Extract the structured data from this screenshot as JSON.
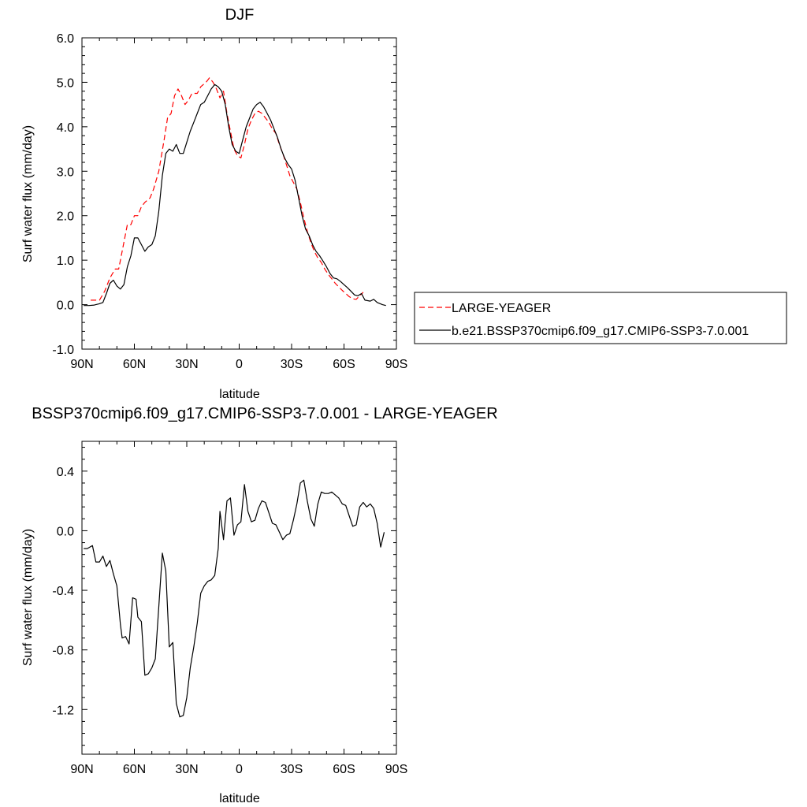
{
  "chart_data": [
    {
      "type": "line",
      "title": "DJF",
      "xlabel": "latitude",
      "ylabel": "Surf water flux (mm/day)",
      "xlim": [
        90,
        -90
      ],
      "ylim": [
        -1.0,
        6.0
      ],
      "x_ticks": [
        90,
        60,
        30,
        0,
        -30,
        -60,
        -90
      ],
      "x_tick_labels": [
        "90N",
        "60N",
        "30N",
        "0",
        "30S",
        "60S",
        "90S"
      ],
      "y_ticks": [
        -1.0,
        0.0,
        1.0,
        2.0,
        3.0,
        4.0,
        5.0,
        6.0
      ],
      "y_tick_labels": [
        "-1.0",
        "0.0",
        "1.0",
        "2.0",
        "3.0",
        "4.0",
        "5.0",
        "6.0"
      ],
      "grid": false,
      "legend_position": "right",
      "series": [
        {
          "name": "LARGE-YEAGER",
          "color": "#ff0000",
          "dash": "dashed",
          "points": [
            [
              85,
              0.1
            ],
            [
              80,
              0.1
            ],
            [
              77,
              0.3
            ],
            [
              74,
              0.6
            ],
            [
              71,
              0.8
            ],
            [
              69,
              0.8
            ],
            [
              67,
              1.2
            ],
            [
              64,
              1.8
            ],
            [
              62,
              1.8
            ],
            [
              60,
              2.0
            ],
            [
              58,
              2.0
            ],
            [
              56,
              2.2
            ],
            [
              54,
              2.3
            ],
            [
              51,
              2.4
            ],
            [
              49,
              2.6
            ],
            [
              46,
              3.0
            ],
            [
              43,
              3.7
            ],
            [
              41,
              4.2
            ],
            [
              39,
              4.3
            ],
            [
              37,
              4.7
            ],
            [
              35,
              4.85
            ],
            [
              33,
              4.7
            ],
            [
              31,
              4.5
            ],
            [
              29,
              4.6
            ],
            [
              27,
              4.75
            ],
            [
              24,
              4.75
            ],
            [
              22,
              4.9
            ],
            [
              19,
              5.0
            ],
            [
              17,
              5.1
            ],
            [
              15,
              5.0
            ],
            [
              13,
              4.85
            ],
            [
              11,
              4.65
            ],
            [
              9,
              4.8
            ],
            [
              7,
              4.3
            ],
            [
              5,
              3.9
            ],
            [
              3,
              3.5
            ],
            [
              1,
              3.35
            ],
            [
              -1,
              3.3
            ],
            [
              -3,
              3.6
            ],
            [
              -5,
              3.95
            ],
            [
              -7,
              4.15
            ],
            [
              -9,
              4.3
            ],
            [
              -11,
              4.35
            ],
            [
              -13,
              4.3
            ],
            [
              -15,
              4.2
            ],
            [
              -17,
              4.1
            ],
            [
              -19,
              3.95
            ],
            [
              -21,
              3.85
            ],
            [
              -23,
              3.6
            ],
            [
              -25,
              3.4
            ],
            [
              -27,
              3.15
            ],
            [
              -29,
              2.9
            ],
            [
              -31,
              2.75
            ],
            [
              -33,
              2.6
            ],
            [
              -35,
              2.3
            ],
            [
              -37,
              1.95
            ],
            [
              -39,
              1.65
            ],
            [
              -41,
              1.4
            ],
            [
              -43,
              1.2
            ],
            [
              -45,
              1.05
            ],
            [
              -47,
              0.95
            ],
            [
              -49,
              0.8
            ],
            [
              -51,
              0.68
            ],
            [
              -53,
              0.58
            ],
            [
              -55,
              0.48
            ],
            [
              -57,
              0.4
            ],
            [
              -59,
              0.32
            ],
            [
              -61,
              0.25
            ],
            [
              -63,
              0.18
            ],
            [
              -65,
              0.13
            ],
            [
              -67,
              0.12
            ],
            [
              -69,
              0.2
            ],
            [
              -71,
              0.28
            ]
          ]
        },
        {
          "name": "b.e21.BSSP370cmip6.f09_g17.CMIP6-SSP3-7.0.001",
          "color": "#000000",
          "dash": "solid",
          "points": [
            [
              89,
              -0.02
            ],
            [
              86,
              -0.02
            ],
            [
              83,
              -0.01
            ],
            [
              80,
              0.02
            ],
            [
              78,
              0.05
            ],
            [
              76,
              0.25
            ],
            [
              74,
              0.48
            ],
            [
              72,
              0.55
            ],
            [
              70,
              0.42
            ],
            [
              68,
              0.35
            ],
            [
              66,
              0.45
            ],
            [
              64,
              0.85
            ],
            [
              62,
              1.1
            ],
            [
              60,
              1.5
            ],
            [
              58,
              1.5
            ],
            [
              56,
              1.35
            ],
            [
              54,
              1.2
            ],
            [
              52,
              1.3
            ],
            [
              50,
              1.35
            ],
            [
              48,
              1.55
            ],
            [
              46,
              2.1
            ],
            [
              44,
              2.9
            ],
            [
              42,
              3.4
            ],
            [
              40,
              3.5
            ],
            [
              38,
              3.45
            ],
            [
              36,
              3.6
            ],
            [
              34,
              3.4
            ],
            [
              32,
              3.4
            ],
            [
              30,
              3.65
            ],
            [
              28,
              3.9
            ],
            [
              26,
              4.1
            ],
            [
              24,
              4.3
            ],
            [
              22,
              4.5
            ],
            [
              20,
              4.55
            ],
            [
              18,
              4.7
            ],
            [
              16,
              4.85
            ],
            [
              14,
              4.95
            ],
            [
              12,
              4.9
            ],
            [
              10,
              4.8
            ],
            [
              8,
              4.5
            ],
            [
              6,
              4.0
            ],
            [
              4,
              3.6
            ],
            [
              2,
              3.45
            ],
            [
              0,
              3.4
            ],
            [
              -2,
              3.7
            ],
            [
              -4,
              4.0
            ],
            [
              -6,
              4.2
            ],
            [
              -8,
              4.4
            ],
            [
              -10,
              4.5
            ],
            [
              -12,
              4.55
            ],
            [
              -14,
              4.45
            ],
            [
              -16,
              4.3
            ],
            [
              -18,
              4.15
            ],
            [
              -20,
              3.95
            ],
            [
              -22,
              3.75
            ],
            [
              -24,
              3.5
            ],
            [
              -26,
              3.3
            ],
            [
              -28,
              3.15
            ],
            [
              -30,
              3.05
            ],
            [
              -32,
              2.8
            ],
            [
              -34,
              2.4
            ],
            [
              -36,
              2.0
            ],
            [
              -38,
              1.7
            ],
            [
              -40,
              1.55
            ],
            [
              -42,
              1.35
            ],
            [
              -44,
              1.2
            ],
            [
              -46,
              1.1
            ],
            [
              -48,
              0.98
            ],
            [
              -50,
              0.85
            ],
            [
              -52,
              0.7
            ],
            [
              -54,
              0.6
            ],
            [
              -56,
              0.58
            ],
            [
              -58,
              0.52
            ],
            [
              -60,
              0.45
            ],
            [
              -62,
              0.38
            ],
            [
              -64,
              0.3
            ],
            [
              -66,
              0.22
            ],
            [
              -68,
              0.2
            ],
            [
              -70,
              0.25
            ],
            [
              -72,
              0.1
            ],
            [
              -75,
              0.08
            ],
            [
              -77,
              0.12
            ],
            [
              -79,
              0.05
            ],
            [
              -82,
              0.0
            ],
            [
              -84,
              -0.02
            ]
          ]
        }
      ]
    },
    {
      "type": "line",
      "title": "BSSP370cmip6.f09_g17.CMIP6-SSP3-7.0.001 - LARGE-YEAGER",
      "xlabel": "latitude",
      "ylabel": "Surf water flux (mm/day)",
      "xlim": [
        90,
        -90
      ],
      "ylim": [
        -1.5,
        0.6
      ],
      "x_ticks": [
        90,
        60,
        30,
        0,
        -30,
        -60,
        -90
      ],
      "x_tick_labels": [
        "90N",
        "60N",
        "30N",
        "0",
        "30S",
        "60S",
        "90S"
      ],
      "y_ticks": [
        -1.2,
        -0.8,
        -0.4,
        0.0,
        0.4
      ],
      "y_tick_labels": [
        "-1.2",
        "-0.8",
        "-0.4",
        "0.0",
        "0.4"
      ],
      "grid": false,
      "series": [
        {
          "color": "#000000",
          "dash": "solid",
          "points": [
            [
              89,
              -0.12
            ],
            [
              87,
              -0.12
            ],
            [
              84,
              -0.1
            ],
            [
              82,
              -0.21
            ],
            [
              80,
              -0.21
            ],
            [
              78,
              -0.17
            ],
            [
              76,
              -0.24
            ],
            [
              74,
              -0.2
            ],
            [
              72,
              -0.29
            ],
            [
              70,
              -0.37
            ],
            [
              68,
              -0.63
            ],
            [
              67,
              -0.72
            ],
            [
              65,
              -0.71
            ],
            [
              63,
              -0.76
            ],
            [
              61,
              -0.45
            ],
            [
              59,
              -0.46
            ],
            [
              58,
              -0.58
            ],
            [
              56,
              -0.61
            ],
            [
              54,
              -0.97
            ],
            [
              52,
              -0.96
            ],
            [
              50,
              -0.92
            ],
            [
              48,
              -0.86
            ],
            [
              46,
              -0.51
            ],
            [
              44,
              -0.15
            ],
            [
              42,
              -0.27
            ],
            [
              40,
              -0.78
            ],
            [
              38,
              -0.75
            ],
            [
              36,
              -1.16
            ],
            [
              34,
              -1.25
            ],
            [
              32,
              -1.24
            ],
            [
              30,
              -1.12
            ],
            [
              28,
              -0.92
            ],
            [
              26,
              -0.78
            ],
            [
              24,
              -0.62
            ],
            [
              22,
              -0.42
            ],
            [
              20,
              -0.37
            ],
            [
              18,
              -0.34
            ],
            [
              16,
              -0.33
            ],
            [
              14,
              -0.3
            ],
            [
              12,
              -0.12
            ],
            [
              11,
              0.13
            ],
            [
              9,
              -0.06
            ],
            [
              7,
              0.2
            ],
            [
              5,
              0.22
            ],
            [
              3,
              -0.03
            ],
            [
              1,
              0.04
            ],
            [
              -1,
              0.06
            ],
            [
              -3,
              0.31
            ],
            [
              -5,
              0.13
            ],
            [
              -7,
              0.06
            ],
            [
              -9,
              0.07
            ],
            [
              -11,
              0.15
            ],
            [
              -13,
              0.2
            ],
            [
              -15,
              0.19
            ],
            [
              -17,
              0.12
            ],
            [
              -19,
              0.05
            ],
            [
              -21,
              0.04
            ],
            [
              -23,
              -0.01
            ],
            [
              -25,
              -0.06
            ],
            [
              -27,
              -0.03
            ],
            [
              -29,
              -0.02
            ],
            [
              -31,
              0.07
            ],
            [
              -33,
              0.18
            ],
            [
              -35,
              0.32
            ],
            [
              -37,
              0.34
            ],
            [
              -39,
              0.2
            ],
            [
              -41,
              0.08
            ],
            [
              -43,
              0.03
            ],
            [
              -45,
              0.18
            ],
            [
              -47,
              0.26
            ],
            [
              -49,
              0.25
            ],
            [
              -51,
              0.25
            ],
            [
              -53,
              0.26
            ],
            [
              -55,
              0.24
            ],
            [
              -57,
              0.22
            ],
            [
              -59,
              0.18
            ],
            [
              -61,
              0.17
            ],
            [
              -63,
              0.1
            ],
            [
              -65,
              0.03
            ],
            [
              -67,
              0.04
            ],
            [
              -69,
              0.16
            ],
            [
              -71,
              0.19
            ],
            [
              -73,
              0.16
            ],
            [
              -75,
              0.18
            ],
            [
              -77,
              0.15
            ],
            [
              -79,
              0.05
            ],
            [
              -81,
              -0.11
            ],
            [
              -83,
              -0.01
            ]
          ]
        }
      ]
    }
  ]
}
